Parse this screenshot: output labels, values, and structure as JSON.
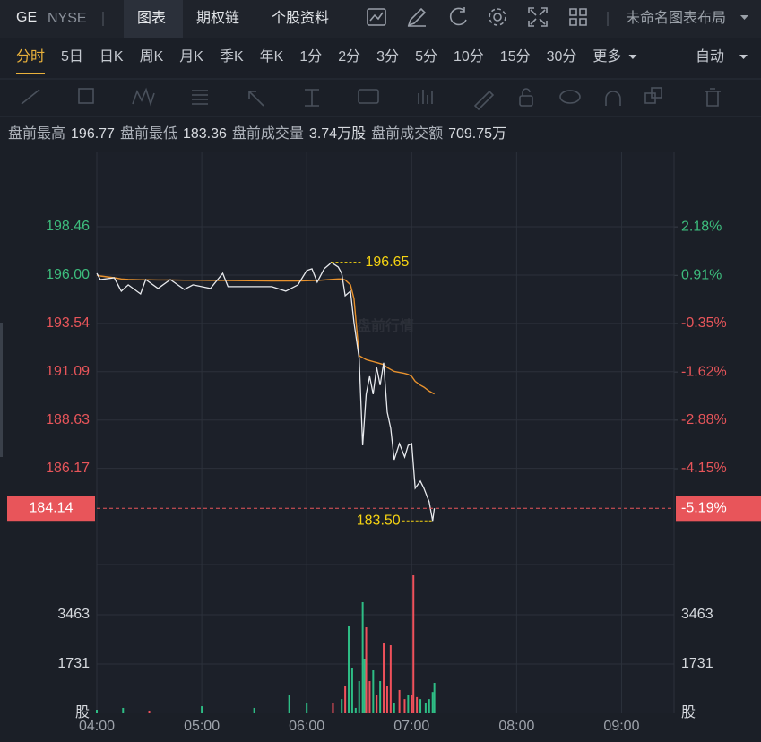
{
  "header": {
    "symbol": "GE",
    "exchange": "NYSE",
    "tabs": [
      "图表",
      "期权链",
      "个股资料"
    ],
    "layout_name": "未命名图表布局"
  },
  "periods": [
    "分时",
    "5日",
    "日K",
    "周K",
    "月K",
    "季K",
    "年K",
    "1分",
    "2分",
    "3分",
    "5分",
    "10分",
    "15分",
    "30分",
    "更多"
  ],
  "scale_mode": "自动",
  "info": [
    {
      "label": "盘前最高",
      "value": "196.77"
    },
    {
      "label": "盘前最低",
      "value": "183.36"
    },
    {
      "label": "盘前成交量",
      "value": "3.74万股"
    },
    {
      "label": "盘前成交额",
      "value": "709.75万"
    }
  ],
  "watermark": "盘前行情",
  "chart_data": [
    {
      "type": "line",
      "x": [
        "04:00",
        "04:02",
        "04:10",
        "04:14",
        "04:18",
        "04:25",
        "04:28",
        "04:35",
        "04:42",
        "04:50",
        "04:55",
        "05:05",
        "05:12",
        "05:15",
        "05:40",
        "05:48",
        "05:55",
        "06:00",
        "06:03",
        "06:06",
        "06:10",
        "06:13",
        "06:14",
        "06:18",
        "06:20",
        "06:22",
        "06:25",
        "06:27",
        "06:30",
        "06:32",
        "06:34",
        "06:36",
        "06:38",
        "06:40",
        "06:42",
        "06:44",
        "06:46",
        "06:48",
        "06:50",
        "06:53",
        "06:56",
        "06:58",
        "07:00",
        "07:02",
        "07:05",
        "07:07",
        "07:10",
        "07:12",
        "07:13"
      ],
      "series": [
        {
          "color": "#e8eaee",
          "values": [
            196.09,
            195.77,
            195.86,
            195.18,
            195.5,
            195.04,
            195.77,
            195.32,
            195.77,
            195.27,
            195.5,
            195.32,
            196.09,
            195.41,
            195.41,
            195.18,
            195.5,
            196.23,
            196.32,
            195.64,
            196.32,
            196.55,
            196.65,
            196.41,
            196.09,
            194.95,
            195.18,
            193.59,
            191.76,
            187.34,
            189.94,
            190.85,
            189.94,
            191.31,
            190.4,
            191.54,
            189.03,
            188.21,
            186.61,
            187.43,
            186.75,
            187.34,
            187.43,
            185.16,
            185.52,
            185.16,
            184.47,
            183.5,
            184.14
          ]
        },
        {
          "color": "#e8922e",
          "values": [
            196.0,
            195.95,
            195.86,
            195.8,
            195.78,
            195.76,
            195.76,
            195.75,
            195.75,
            195.74,
            195.74,
            195.73,
            195.73,
            195.72,
            195.7,
            195.7,
            195.7,
            195.71,
            195.72,
            195.73,
            195.75,
            195.77,
            195.78,
            195.8,
            195.8,
            195.75,
            195.5,
            194.8,
            191.9,
            191.8,
            191.7,
            191.65,
            191.6,
            191.55,
            191.5,
            191.45,
            191.3,
            191.2,
            191.1,
            191.05,
            191.0,
            190.95,
            190.85,
            190.6,
            190.4,
            190.3,
            190.1,
            190.0,
            189.95
          ]
        }
      ],
      "xlim": [
        "04:00",
        "09:30"
      ],
      "ylim": [
        181.28,
        202.24
      ],
      "yticks": [
        198.46,
        {
          "value": 196,
          "label": "196.00"
        },
        193.54,
        191.09,
        188.63,
        186.17
      ],
      "y2lim": [
        -6.66,
        4.13
      ],
      "y2ticks": [
        {
          "value": 2.18,
          "label": "2.18%"
        },
        {
          "value": 0.91,
          "label": "0.91%"
        },
        {
          "value": -0.35,
          "label": "-0.35%"
        },
        {
          "value": -1.62,
          "label": "-1.62%"
        },
        {
          "value": -2.88,
          "label": "-2.88%"
        },
        {
          "value": -4.15,
          "label": "-4.15%"
        }
      ],
      "up_color": "#3dbd7d",
      "down_color": "#e8555a",
      "high_marker": {
        "x": "06:14",
        "value": 196.65
      },
      "low_marker": {
        "x": "07:12",
        "value": 183.5,
        "label": "183.50"
      },
      "last_price": {
        "value": 184.14,
        "change": {
          "value": -5.19,
          "label": "-5.19%"
        }
      },
      "grid": true
    },
    {
      "type": "bar",
      "x": [
        "04:00",
        "04:15",
        "04:30",
        "05:00",
        "05:30",
        "05:50",
        "06:00",
        "06:15",
        "06:20",
        "06:22",
        "06:24",
        "06:26",
        "06:28",
        "06:30",
        "06:32",
        "06:33",
        "06:34",
        "06:36",
        "06:38",
        "06:40",
        "06:42",
        "06:44",
        "06:46",
        "06:48",
        "06:50",
        "06:53",
        "06:56",
        "06:58",
        "07:00",
        "07:01",
        "07:03",
        "07:05",
        "07:08",
        "07:10",
        "07:12",
        "07:13"
      ],
      "values": [
        126,
        190,
        95,
        250,
        190,
        660,
        350,
        350,
        500,
        976,
        3085,
        1605,
        190,
        1133,
        3904,
        1920,
        3022,
        1133,
        1511,
        661,
        1133,
        2455,
        976,
        2392,
        350,
        820,
        500,
        660,
        660,
        4848,
        570,
        500,
        350,
        500,
        750,
        1070
      ],
      "colors": [
        "#2ebd85",
        "#2ebd85",
        "#f0515b",
        "#2ebd85",
        "#2ebd85",
        "#2ebd85",
        "#2ebd85",
        "#f0515b",
        "#2ebd85",
        "#f0515b",
        "#2ebd85",
        "#2ebd85",
        "#2ebd85",
        "#2ebd85",
        "#2ebd85",
        "#2ebd85",
        "#f0515b",
        "#f0515b",
        "#2ebd85",
        "#f0515b",
        "#2ebd85",
        "#f0515b",
        "#f0515b",
        "#f0515b",
        "#2ebd85",
        "#f0515b",
        "#f0515b",
        "#2ebd85",
        "#f0515b",
        "#f0515b",
        "#f0515b",
        "#2ebd85",
        "#2ebd85",
        "#2ebd85",
        "#2ebd85",
        "#2ebd85"
      ],
      "xlim": [
        "04:00",
        "09:30"
      ],
      "xticks": [
        "04:00",
        "05:00",
        "06:00",
        "07:00",
        "08:00",
        "09:00"
      ],
      "ylim": [
        0,
        5226
      ],
      "yticks": [
        {
          "value": 0,
          "label": "股"
        },
        1731,
        3463
      ],
      "grid": true
    }
  ]
}
